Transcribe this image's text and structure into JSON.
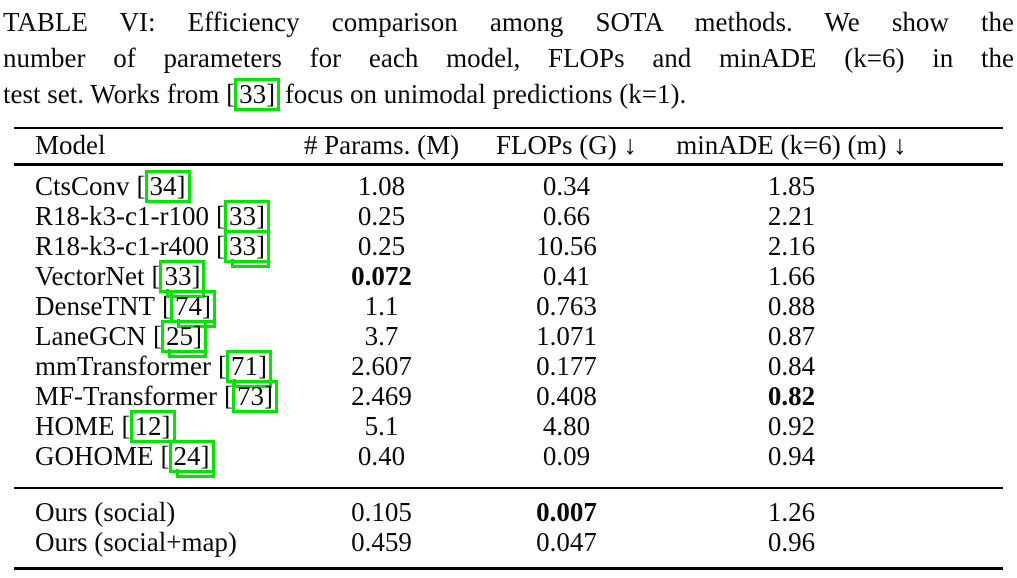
{
  "annotation": {
    "box_color": "#00E400"
  },
  "caption": {
    "line1": "TABLE VI: Efficiency comparison among SOTA methods. We show the",
    "line2": "number of parameters for each model, FLOPs and minADE (k=6) in the",
    "line3_prefix": "test set. Works from ",
    "line3_cite": "33",
    "line3_suffix": " focus on unimodal predictions (k=1)."
  },
  "table": {
    "headers": {
      "model": "Model",
      "params": "# Params. (M)",
      "flops": "FLOPs (G) ↓",
      "minade": "minADE (k=6) (m) ↓"
    },
    "rows": [
      {
        "model": "CtsConv",
        "cite": "34",
        "params": "1.08",
        "flops": "0.34",
        "minade": "1.85",
        "bold": null,
        "tail": false
      },
      {
        "model": "R18-k3-c1-r100",
        "cite": "33",
        "params": "0.25",
        "flops": "0.66",
        "minade": "2.21",
        "bold": null,
        "tail": false
      },
      {
        "model": "R18-k3-c1-r400",
        "cite": "33",
        "params": "0.25",
        "flops": "10.56",
        "minade": "2.16",
        "bold": null,
        "tail": true
      },
      {
        "model": "VectorNet",
        "cite": "33",
        "params": "0.072",
        "flops": "0.41",
        "minade": "1.66",
        "bold": "params",
        "tail": true
      },
      {
        "model": "DenseTNT",
        "cite": "74",
        "params": "1.1",
        "flops": "0.763",
        "minade": "0.88",
        "bold": null,
        "tail": true
      },
      {
        "model": "LaneGCN",
        "cite": "25",
        "params": "3.7",
        "flops": "1.071",
        "minade": "0.87",
        "bold": null,
        "tail": true
      },
      {
        "model": "mmTransformer",
        "cite": "71",
        "params": "2.607",
        "flops": "0.177",
        "minade": "0.84",
        "bold": null,
        "tail": true
      },
      {
        "model": "MF-Transformer",
        "cite": "73",
        "params": "2.469",
        "flops": "0.408",
        "minade": "0.82",
        "bold": "minade",
        "tail": false
      },
      {
        "model": "HOME",
        "cite": "12",
        "params": "5.1",
        "flops": "4.80",
        "minade": "0.92",
        "bold": null,
        "tail": false
      },
      {
        "model": "GOHOME",
        "cite": "24",
        "params": "0.40",
        "flops": "0.09",
        "minade": "0.94",
        "bold": null,
        "tail": true
      }
    ],
    "ours_rows": [
      {
        "model": "Ours (social)",
        "params": "0.105",
        "flops": "0.007",
        "minade": "1.26",
        "bold": "flops"
      },
      {
        "model": "Ours (social+map)",
        "params": "0.459",
        "flops": "0.047",
        "minade": "0.96",
        "bold": null
      }
    ]
  }
}
